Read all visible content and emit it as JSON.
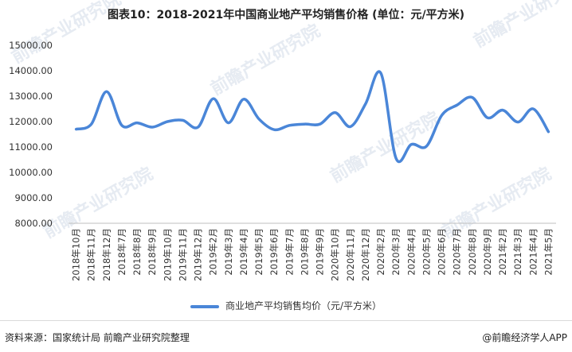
{
  "chart_data": {
    "type": "line",
    "title": "图表10：2018-2021年中国商业地产平均销售价格 (单位：元/平方米)",
    "categories": [
      "2018年10月",
      "2018年11月",
      "2018年12月",
      "2018年7月",
      "2018年8月",
      "2018年9月",
      "2019年10月",
      "2019年11月",
      "2019年12月",
      "2019年2月",
      "2019年3月",
      "2019年4月",
      "2019年5月",
      "2019年6月",
      "2019年7月",
      "2019年8月",
      "2019年9月",
      "2020年10月",
      "2020年11月",
      "2020年12月",
      "2020年2月",
      "2020年3月",
      "2020年4月",
      "2020年5月",
      "2020年6月",
      "2020年7月",
      "2020年8月",
      "2020年9月",
      "2021年2月",
      "2021年3月",
      "2021年4月",
      "2021年5月"
    ],
    "series": [
      {
        "name": "商业地产平均销售均价（元/平方米）",
        "values": [
          11700,
          11900,
          13180,
          11850,
          11950,
          11780,
          12000,
          12050,
          11780,
          12900,
          11950,
          12880,
          12100,
          11680,
          11850,
          11900,
          11900,
          12350,
          11800,
          12700,
          13900,
          10550,
          11100,
          11030,
          12250,
          12650,
          12950,
          12150,
          12450,
          11980,
          12500,
          11600
        ]
      }
    ],
    "y_ticks": [
      "15000.00",
      "14000.00",
      "13000.00",
      "12000.00",
      "11000.00",
      "10000.00",
      "9000.00",
      "8000.00"
    ],
    "ylim": [
      8000,
      15000
    ],
    "grid": false,
    "legend_position": "bottom",
    "line_color": "#4a86d8"
  },
  "footer": {
    "source": "资料来源：国家统计局 前瞻产业研究院整理",
    "credit": "@前瞻经济学人APP"
  },
  "watermark": {
    "text": "前瞻产业研究院"
  }
}
